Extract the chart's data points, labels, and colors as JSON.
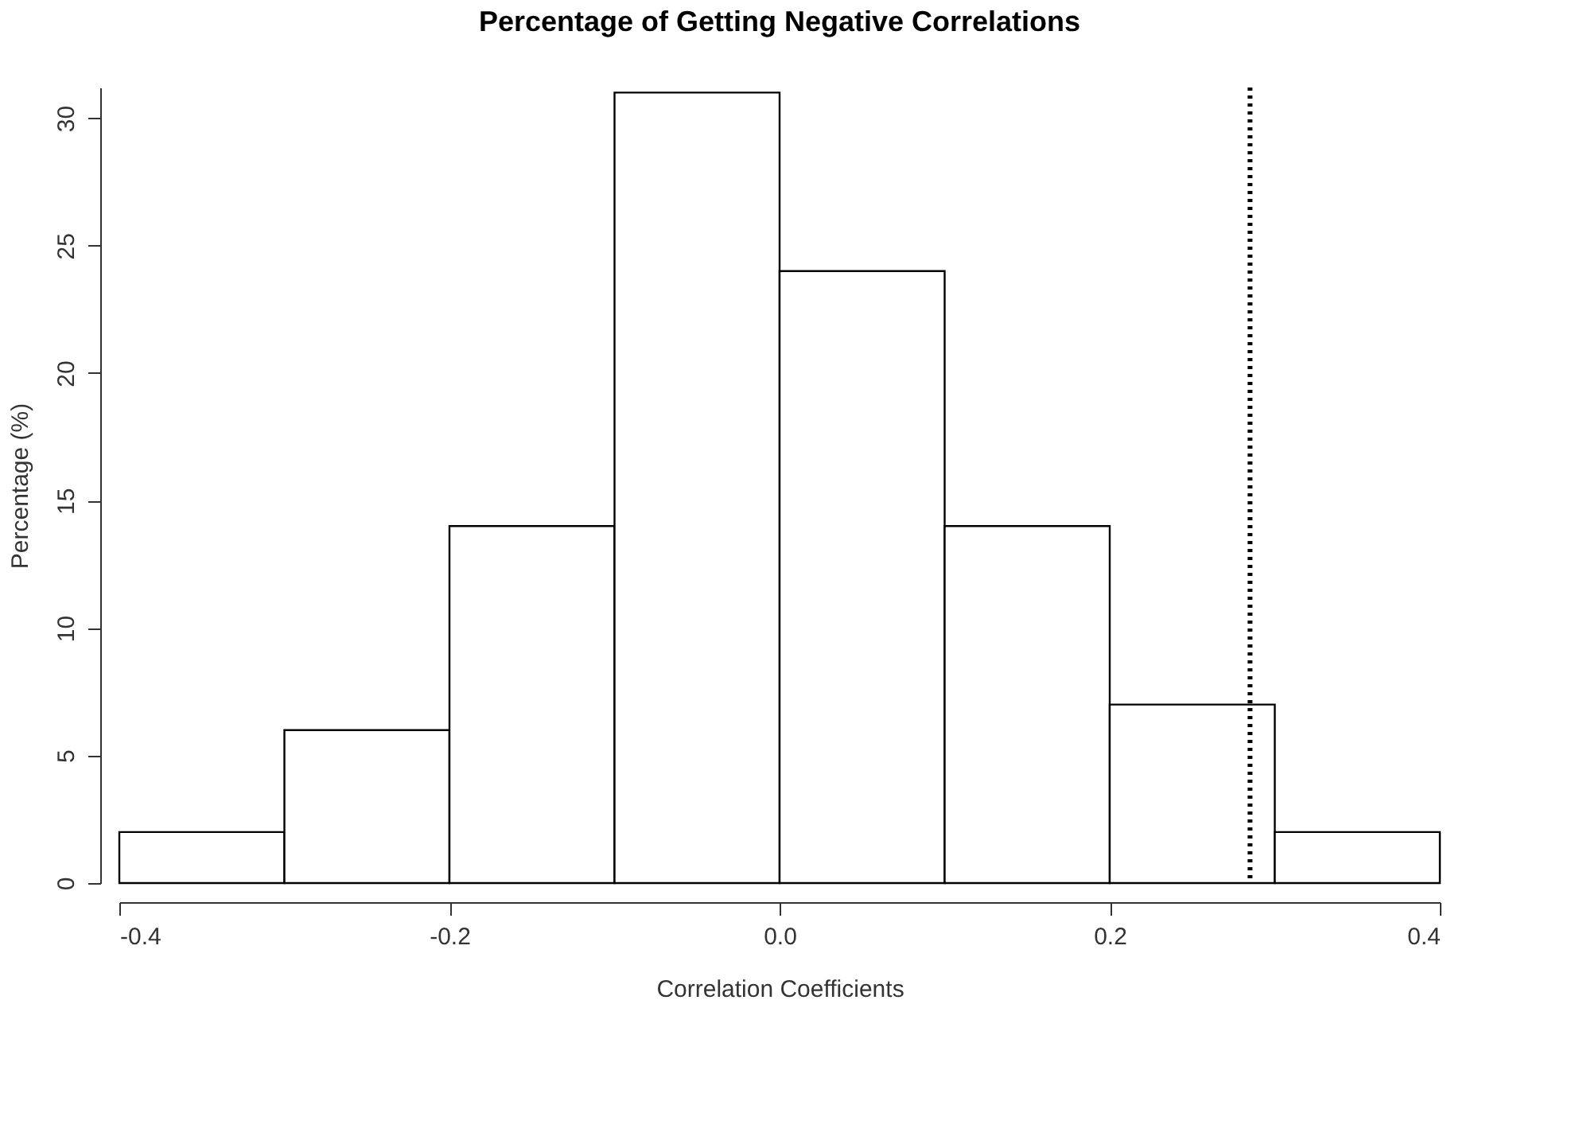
{
  "chart_data": {
    "type": "histogram",
    "title": "Percentage of Getting Negative Correlations",
    "xlabel": "Correlation Coefficients",
    "ylabel": "Percentage (%)",
    "bins": [
      -0.4,
      -0.3,
      -0.2,
      -0.1,
      0.0,
      0.1,
      0.2,
      0.3,
      0.4
    ],
    "values": [
      2,
      6,
      14,
      31,
      24,
      14,
      7,
      2
    ],
    "color": "#ffffff",
    "xlim": [
      -0.4,
      0.4
    ],
    "xticks": [
      {
        "value": -0.4,
        "label": "-0.4"
      },
      {
        "value": -0.2,
        "label": "-0.2"
      },
      {
        "value": 0.0,
        "label": "0.0"
      },
      {
        "value": 0.2,
        "label": "0.2"
      },
      {
        "value": 0.4,
        "label": "0.4"
      }
    ],
    "ylim": [
      0,
      31.2
    ],
    "yticks": [
      0,
      5,
      10,
      15,
      20,
      25,
      30
    ],
    "ref_lines": [
      {
        "axis": "x",
        "value": 0.285,
        "color": "#000000",
        "line_style": "dotted"
      }
    ],
    "grid": false
  }
}
